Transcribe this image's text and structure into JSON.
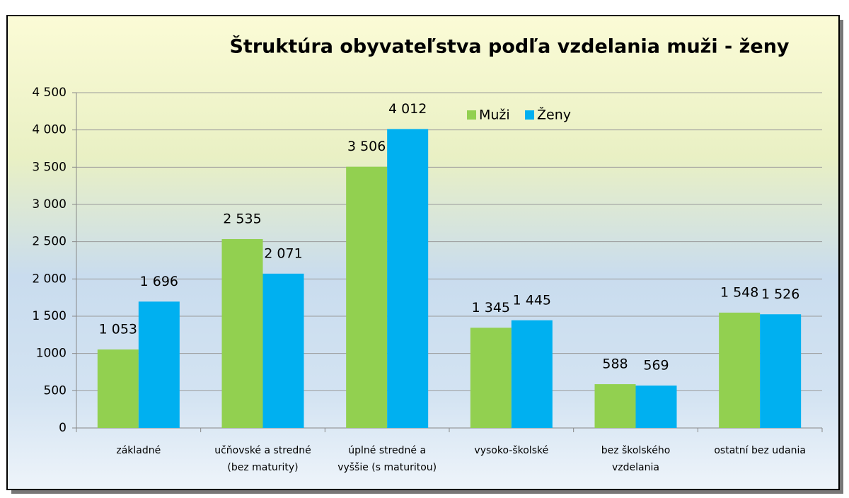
{
  "chart_data": {
    "type": "bar",
    "title": "Štruktúra  obyvateľstva podľa vzdelania muži - ženy",
    "categories": [
      [
        "základné"
      ],
      [
        "učňovské a stredné",
        "(bez maturity)"
      ],
      [
        "úplné stredné  a",
        "vyššie (s maturitou)"
      ],
      [
        "vysoko-školské"
      ],
      [
        "bez školského",
        "vzdelania"
      ],
      [
        "ostatní bez udania"
      ]
    ],
    "series": [
      {
        "name": "Muži",
        "color": "#92d050",
        "values": [
          1053,
          2535,
          3506,
          1345,
          588,
          1548
        ],
        "value_labels": [
          "1 053",
          "2 535",
          "3 506",
          "1 345",
          "588",
          "1 548"
        ]
      },
      {
        "name": "Ženy",
        "color": "#00b0f0",
        "values": [
          1696,
          2071,
          4012,
          1445,
          569,
          1526
        ],
        "value_labels": [
          "1 696",
          "2 071",
          "4 012",
          "1 445",
          "569",
          "1 526"
        ]
      }
    ],
    "ylim": [
      0,
      4500
    ],
    "yticks": [
      0,
      500,
      {
        "value": 1000,
        "label": "1000"
      },
      {
        "value": 1500,
        "label": "1 500"
      },
      {
        "value": 2000,
        "label": "2 000"
      },
      {
        "value": 2500,
        "label": "2 500"
      },
      {
        "value": 3000,
        "label": "3 000"
      },
      {
        "value": 3500,
        "label": "3 500"
      },
      {
        "value": 4000,
        "label": "4 000"
      },
      {
        "value": 4500,
        "label": "4 500"
      }
    ],
    "grid": true,
    "legend": "top"
  }
}
